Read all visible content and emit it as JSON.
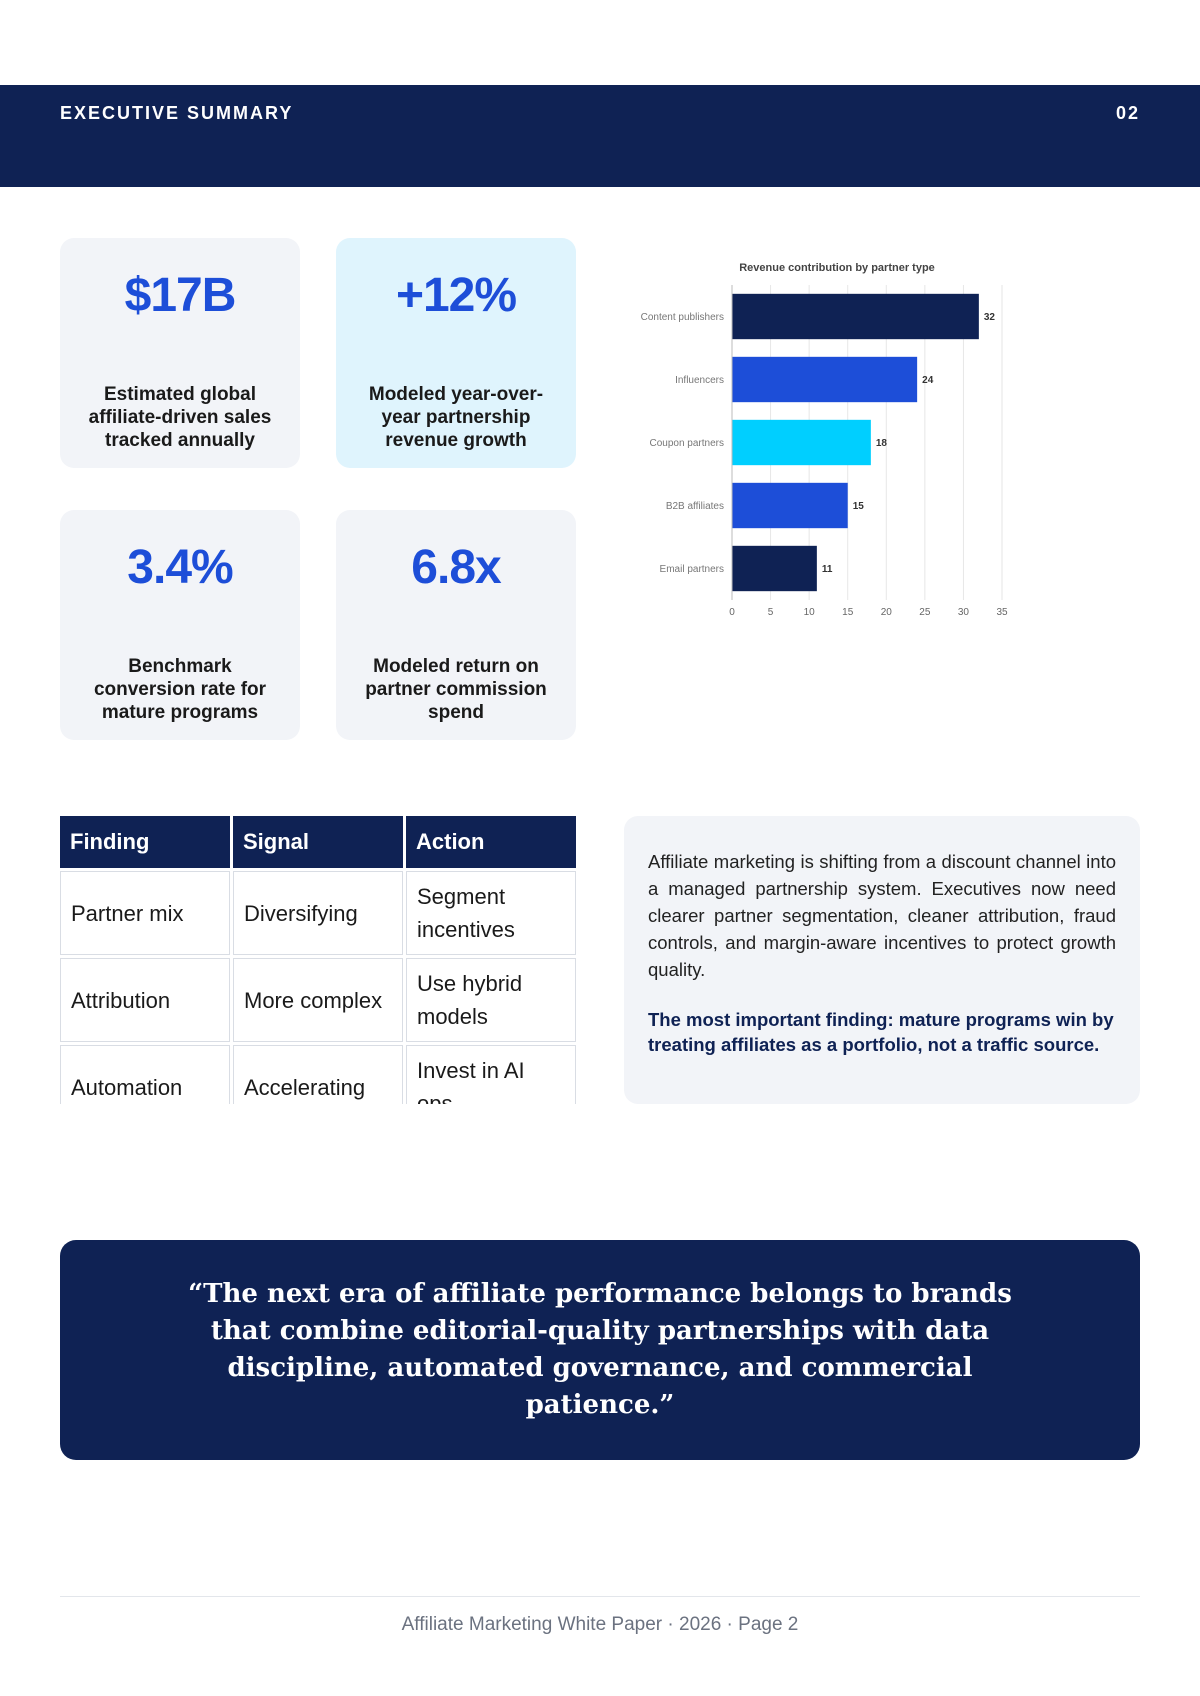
{
  "header": {
    "title": "EXECUTIVE SUMMARY",
    "page_number": "02"
  },
  "stats": [
    {
      "value": "$17B",
      "label": "Estimated global affiliate-driven sales tracked annually"
    },
    {
      "value": "+12%",
      "label": "Modeled year-over-year partnership revenue growth"
    },
    {
      "value": "3.4%",
      "label": "Benchmark conversion rate for mature programs"
    },
    {
      "value": "6.8x",
      "label": "Modeled return on partner commission spend"
    }
  ],
  "chart_data": {
    "type": "bar",
    "orientation": "horizontal",
    "title": "Revenue contribution by partner type",
    "xlabel": "",
    "ylabel": "",
    "categories": [
      "Content publishers",
      "Influencers",
      "Coupon partners",
      "B2B affiliates",
      "Email partners"
    ],
    "values": [
      32,
      24,
      18,
      15,
      11
    ],
    "colors": [
      "#0f2254",
      "#1d4ed8",
      "#00cfff",
      "#1d4ed8",
      "#0f2254"
    ],
    "xlim": [
      0,
      35
    ],
    "xticks": [
      0,
      5,
      10,
      15,
      20,
      25,
      30,
      35
    ],
    "grid": true,
    "data_labels": true
  },
  "table": {
    "headers": [
      "Finding",
      "Signal",
      "Action"
    ],
    "rows": [
      [
        "Partner mix",
        "Diversifying",
        "Segment incentives"
      ],
      [
        "Attribution",
        "More complex",
        "Use hybrid models"
      ],
      [
        "Automation",
        "Accelerating",
        "Invest in AI ops"
      ]
    ]
  },
  "summary": {
    "text": "Affiliate marketing is shifting from a discount channel into a managed partnership system. Executives now need clearer partner segmentation, cleaner attribution, fraud controls, and margin-aware incentives to protect growth quality.",
    "highlight": "The most important finding: mature programs win by treating affiliates as a portfolio, not a traffic source."
  },
  "quote": "“The next era of affiliate performance belongs to brands that combine editorial-quality partnerships with data discipline, automated governance, and commercial patience.”",
  "footer": "Affiliate Marketing White Paper · 2026 · Page 2",
  "colors": {
    "navy": "#0f2254",
    "blue": "#1d4ed8",
    "cyan": "#00cfff",
    "card": "#f2f4f8",
    "card_highlight": "#dff4fd"
  }
}
